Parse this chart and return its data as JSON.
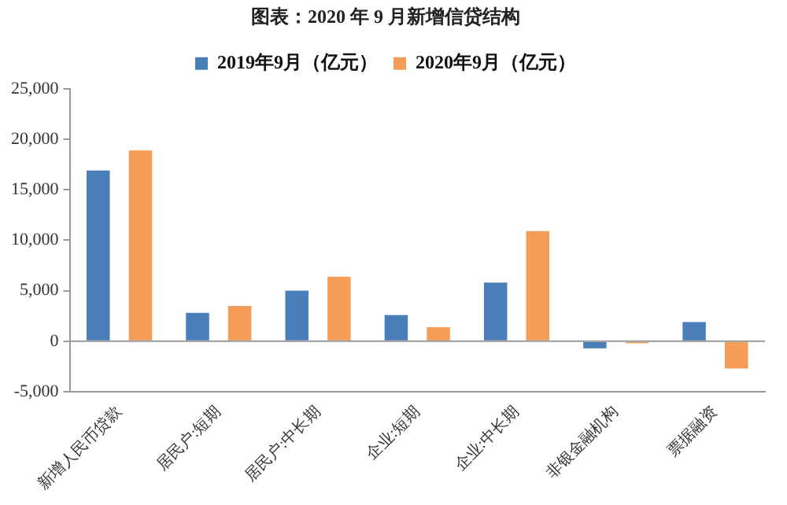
{
  "chart_data": {
    "type": "bar",
    "title": "图表：2020 年 9 月新增信贷结构",
    "categories": [
      "新增人民币贷款",
      "居民户:短期",
      "居民户:中长期",
      "企业:短期",
      "企业:中长期",
      "非银金融机构",
      "票据融资"
    ],
    "series": [
      {
        "name": "2019年9月（亿元）",
        "color": "#4a7ebb",
        "values": [
          16900,
          2800,
          5000,
          2600,
          5800,
          -700,
          1900
        ]
      },
      {
        "name": "2020年9月（亿元）",
        "color": "#f59d56",
        "values": [
          18900,
          3500,
          6400,
          1400,
          10900,
          -200,
          -2700
        ]
      }
    ],
    "ylim": [
      -5000,
      25000
    ],
    "yticks": [
      {
        "value": -5000,
        "label": "-5,000"
      },
      0,
      {
        "value": 5000,
        "label": "5,000"
      },
      {
        "value": 10000,
        "label": "10,000"
      },
      {
        "value": 15000,
        "label": "15,000"
      },
      {
        "value": 20000,
        "label": "20,000"
      },
      {
        "value": 25000,
        "label": "25,000"
      }
    ],
    "legend": "top"
  }
}
